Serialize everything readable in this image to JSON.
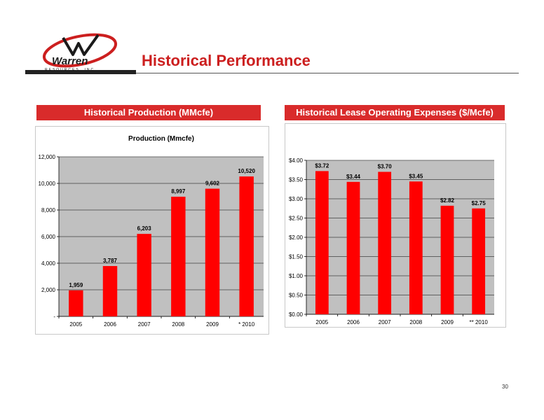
{
  "header": {
    "title": "Historical Performance",
    "logo_text": "Warren",
    "logo_subtext": "RESOURCES, INC."
  },
  "panels": {
    "left_title": "Historical Production (MMcfe)",
    "right_title": "Historical Lease Operating Expenses ($/Mcfe)"
  },
  "page_number": "30",
  "colors": {
    "bar": "#ff0000",
    "accent": "#d92b2b",
    "plot_bg": "#c0c0c0"
  },
  "chart_data": [
    {
      "type": "bar",
      "title": "Production (Mmcfe)",
      "categories": [
        "2005",
        "2006",
        "2007",
        "2008",
        "2009",
        "* 2010"
      ],
      "values": [
        1959,
        3787,
        6203,
        8997,
        9602,
        10520
      ],
      "data_labels": [
        "1,959",
        "3,787",
        "6,203",
        "8,997",
        "9,602",
        "10,520"
      ],
      "ylim": [
        0,
        12000
      ],
      "yticks": [
        0,
        2000,
        4000,
        6000,
        8000,
        10000,
        12000
      ],
      "ytick_labels": [
        "-",
        "2,000",
        "4,000",
        "6,000",
        "8,000",
        "10,000",
        "12,000"
      ],
      "grid": true
    },
    {
      "type": "bar",
      "title": "",
      "categories": [
        "2005",
        "2006",
        "2007",
        "2008",
        "2009",
        "** 2010"
      ],
      "values": [
        3.72,
        3.44,
        3.7,
        3.45,
        2.82,
        2.75
      ],
      "data_labels": [
        "$3.72",
        "$3.44",
        "$3.70",
        "$3.45",
        "$2.82",
        "$2.75"
      ],
      "ylim": [
        0,
        4
      ],
      "yticks": [
        0,
        0.5,
        1,
        1.5,
        2,
        2.5,
        3,
        3.5,
        4
      ],
      "ytick_labels": [
        "$0.00",
        "$0.50",
        "$1.00",
        "$1.50",
        "$2.00",
        "$2.50",
        "$3.00",
        "$3.50",
        "$4.00"
      ],
      "grid": true
    }
  ]
}
